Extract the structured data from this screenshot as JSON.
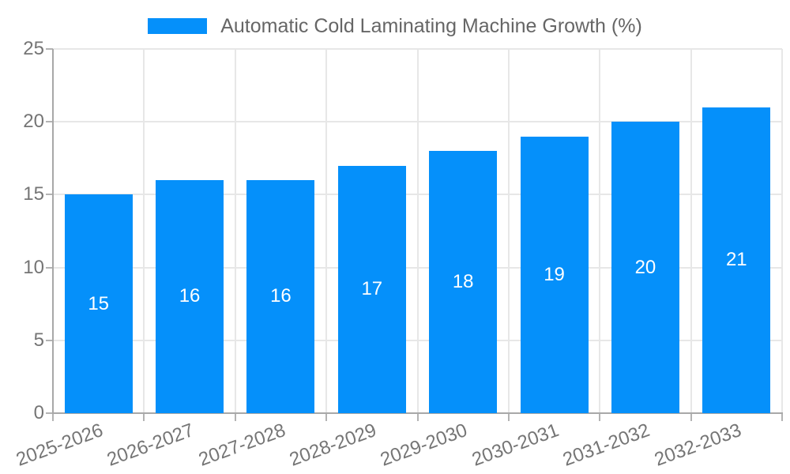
{
  "legend": {
    "label": "Automatic Cold Laminating Machine Growth (%)"
  },
  "chart_data": {
    "type": "bar",
    "title": "Automatic Cold Laminating Machine Growth (%)",
    "categories": [
      "2025-2026",
      "2026-2027",
      "2027-2028",
      "2028-2029",
      "2029-2030",
      "2030-2031",
      "2031-2032",
      "2032-2033"
    ],
    "values": [
      15,
      16,
      16,
      17,
      18,
      19,
      20,
      21
    ],
    "xlabel": "",
    "ylabel": "",
    "ylim": [
      0,
      25
    ],
    "yticks": [
      0,
      5,
      10,
      15,
      20,
      25
    ],
    "grid": true,
    "legend_position": "top",
    "bar_color": "#0590fa",
    "value_label_color": "#ffffff",
    "tick_label_color": "#757575",
    "legend_text_color": "#666666"
  }
}
